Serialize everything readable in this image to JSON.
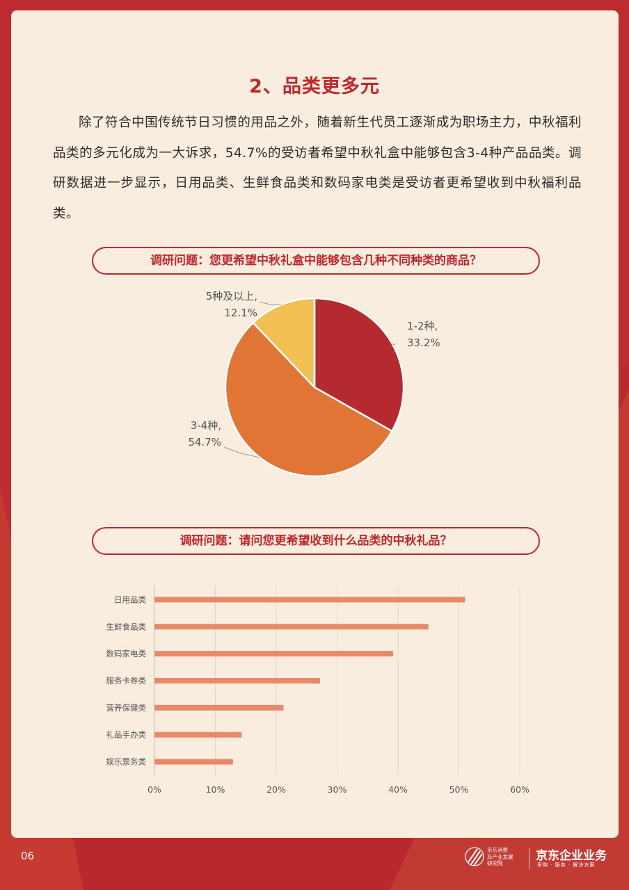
{
  "section": {
    "title": "2、品类更多元",
    "paragraph": "除了符合中国传统节日习惯的用品之外，随着新生代员工逐渐成为职场主力，中秋福利品类的多元化成为一大诉求，54.7%的受访者希望中秋礼盒中能够包含3-4种产品品类。调研数据进一步显示，日用品类、生鲜食品类和数码家电类是受访者更希望收到中秋福利品类。"
  },
  "colors": {
    "brand_red": "#c0272d",
    "card_bg": "#f9eddf",
    "slice_dark_red": "#b52a2e",
    "slice_orange": "#e07535",
    "slice_yellow": "#f2c052",
    "bar_salmon": "#e8896a"
  },
  "chart_data": [
    {
      "type": "pie",
      "title": "调研问题：您更希望中秋礼盒中能够包含几种不同种类的商品？",
      "slices": [
        {
          "label": "1-2种,",
          "value": 33.2,
          "display": "33.2%",
          "color": "#b52a2e"
        },
        {
          "label": "3-4种,",
          "value": 54.7,
          "display": "54.7%",
          "color": "#e07535"
        },
        {
          "label": "5种及以上,",
          "value": 12.1,
          "display": "12.1%",
          "color": "#f2c052"
        }
      ]
    },
    {
      "type": "bar",
      "orientation": "horizontal",
      "title": "调研问题：请问您更希望收到什么品类的中秋礼品？",
      "categories": [
        "日用品类",
        "生鲜食品类",
        "数码家电类",
        "服务卡券类",
        "营养保健类",
        "礼品手办类",
        "娱乐票务类"
      ],
      "values": [
        51,
        45,
        39.2,
        27.2,
        21.2,
        14.3,
        12.9
      ],
      "xlim": [
        0,
        60
      ],
      "xticks": [
        "0%",
        "10%",
        "20%",
        "30%",
        "40%",
        "50%",
        "60%"
      ],
      "grid": true,
      "color": "#e8896a"
    }
  ],
  "footer": {
    "page_number": "06",
    "institute": [
      "京东消费",
      "及产业发展",
      "研究院"
    ],
    "brand": "京东企业业务",
    "tagline": "采购 · 服务 · 解决方案"
  }
}
